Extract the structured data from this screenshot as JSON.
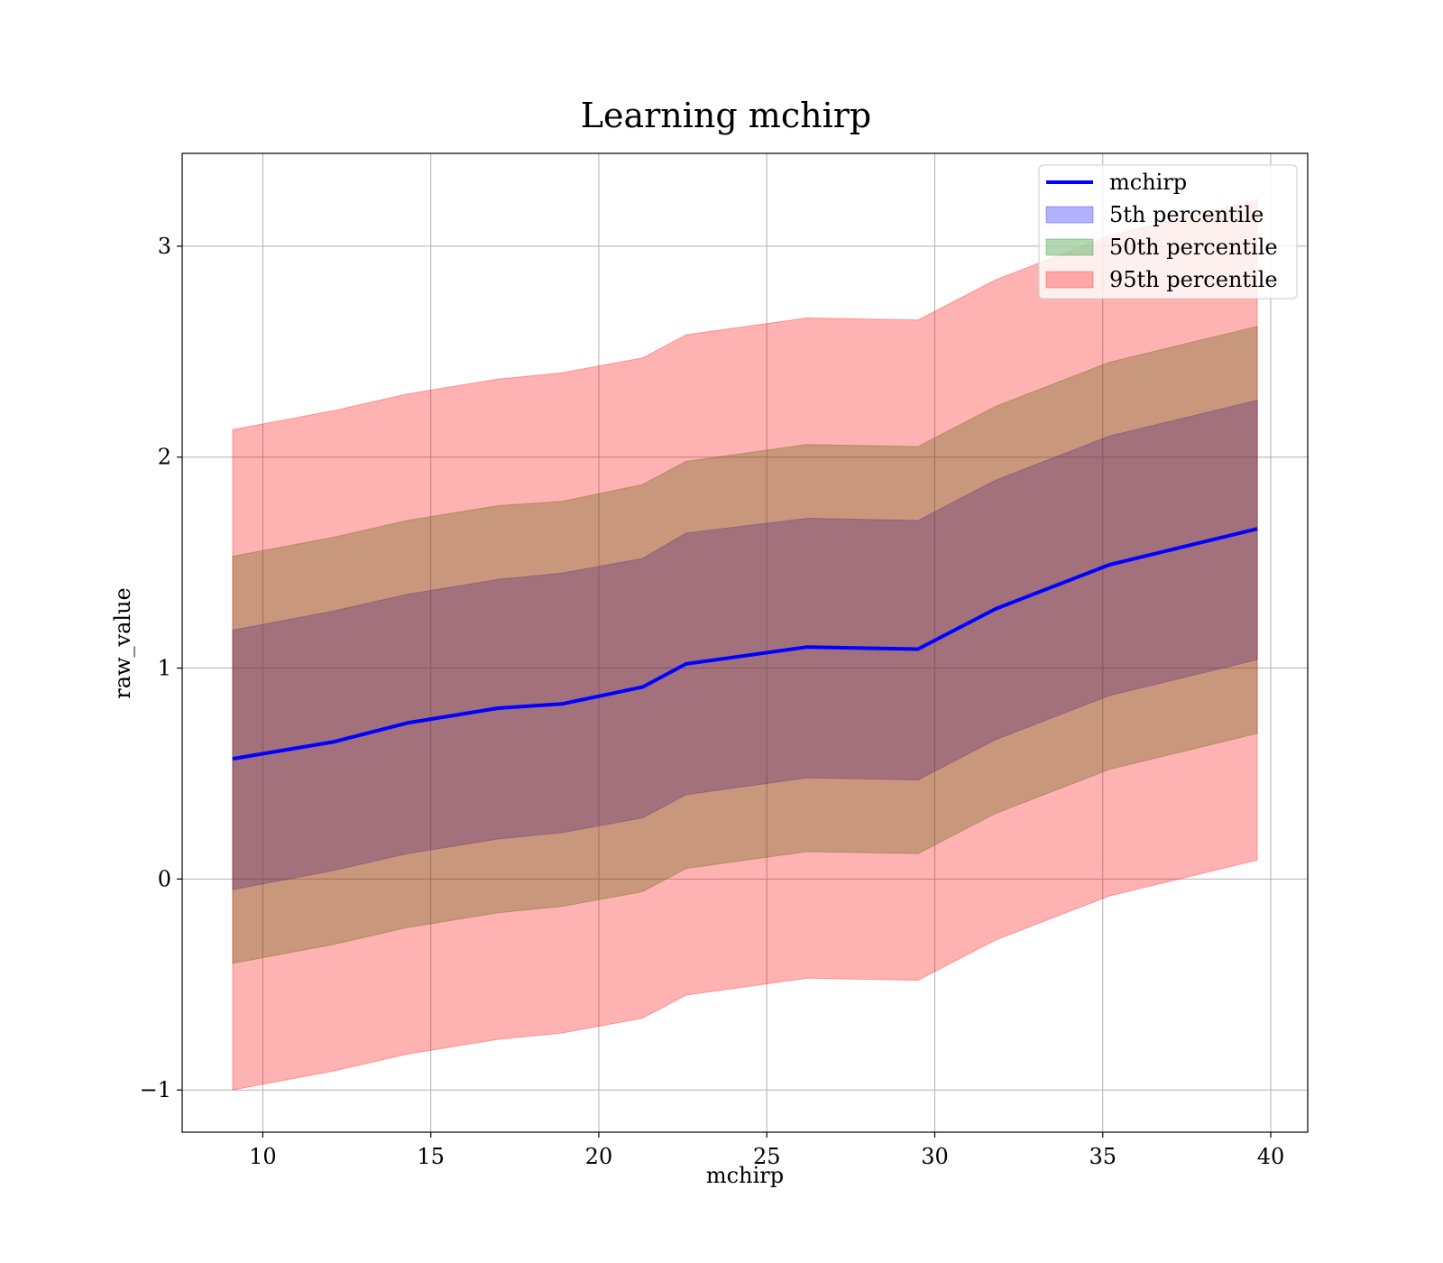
{
  "chart_data": {
    "type": "area",
    "title": "Learning mchirp",
    "xlabel": "mchirp",
    "ylabel": "raw_value",
    "xlim": [
      7.6,
      41.1
    ],
    "ylim": [
      -1.2,
      3.44
    ],
    "xticks": [
      10,
      15,
      20,
      25,
      30,
      35,
      40
    ],
    "xtick_labels": [
      "10",
      "15",
      "20",
      "25",
      "30",
      "35",
      "40"
    ],
    "yticks": [
      -1,
      0,
      1,
      2,
      3
    ],
    "ytick_labels": [
      "−1",
      "0",
      "1",
      "2",
      "3"
    ],
    "grid": true,
    "legend_position": "top-right",
    "x": [
      9.1,
      12.1,
      14.3,
      17.0,
      18.9,
      21.3,
      22.6,
      26.2,
      29.5,
      31.8,
      35.2,
      39.6
    ],
    "line": {
      "name": "mchirp",
      "color": "#0000ff",
      "values": [
        0.57,
        0.65,
        0.74,
        0.81,
        0.83,
        0.91,
        1.02,
        1.1,
        1.09,
        1.28,
        1.49,
        1.66
      ]
    },
    "bands": [
      {
        "name": "5th percentile",
        "color": "#0000ff",
        "opacity": 0.3,
        "lower": [
          -0.05,
          0.04,
          0.12,
          0.19,
          0.22,
          0.29,
          0.4,
          0.48,
          0.47,
          0.66,
          0.87,
          1.04
        ],
        "upper": [
          1.18,
          1.27,
          1.35,
          1.42,
          1.45,
          1.52,
          1.64,
          1.71,
          1.7,
          1.89,
          2.1,
          2.27
        ]
      },
      {
        "name": "50th percentile",
        "color": "#008000",
        "opacity": 0.3,
        "lower": [
          -0.4,
          -0.31,
          -0.23,
          -0.16,
          -0.13,
          -0.06,
          0.05,
          0.13,
          0.12,
          0.31,
          0.52,
          0.69
        ],
        "upper": [
          1.53,
          1.62,
          1.7,
          1.77,
          1.79,
          1.87,
          1.98,
          2.06,
          2.05,
          2.24,
          2.45,
          2.62
        ]
      },
      {
        "name": "95th percentile",
        "color": "#ff0000",
        "opacity": 0.3,
        "lower": [
          -1.0,
          -0.91,
          -0.83,
          -0.76,
          -0.73,
          -0.66,
          -0.55,
          -0.47,
          -0.48,
          -0.29,
          -0.08,
          0.09
        ],
        "upper": [
          2.13,
          2.22,
          2.3,
          2.37,
          2.4,
          2.47,
          2.58,
          2.66,
          2.65,
          2.84,
          3.05,
          3.22
        ]
      }
    ]
  }
}
